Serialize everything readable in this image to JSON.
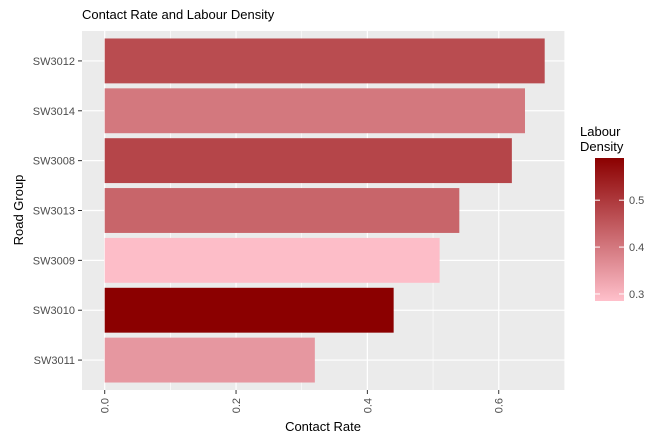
{
  "chart_data": {
    "type": "bar",
    "orientation": "horizontal",
    "title": "Contact Rate and Labour Density",
    "xlabel": "Contact Rate",
    "ylabel": "Road Group",
    "categories": [
      "SW3012",
      "SW3014",
      "SW3008",
      "SW3013",
      "SW3009",
      "SW3010",
      "SW3011"
    ],
    "values": [
      0.67,
      0.64,
      0.62,
      0.54,
      0.51,
      0.44,
      0.32
    ],
    "fill_values": [
      0.47,
      0.4,
      0.48,
      0.43,
      0.29,
      0.59,
      0.35
    ],
    "xlim": [
      0,
      0.67
    ],
    "xticks": [
      0.0,
      0.2,
      0.4,
      0.6
    ],
    "xtick_labels": [
      "0.0",
      "0.2",
      "0.4",
      "0.6"
    ],
    "grid": true,
    "legend": {
      "title_line1": "Labour",
      "title_line2": "Density",
      "placement": "right",
      "range": [
        0.285,
        0.59
      ],
      "ticks": [
        0.3,
        0.4,
        0.5
      ],
      "tick_labels": [
        "0.3",
        "0.4",
        "0.5"
      ],
      "low_color": "#FFC0CB",
      "high_color": "#8B0000"
    },
    "panel_color": "#EBEBEB"
  }
}
